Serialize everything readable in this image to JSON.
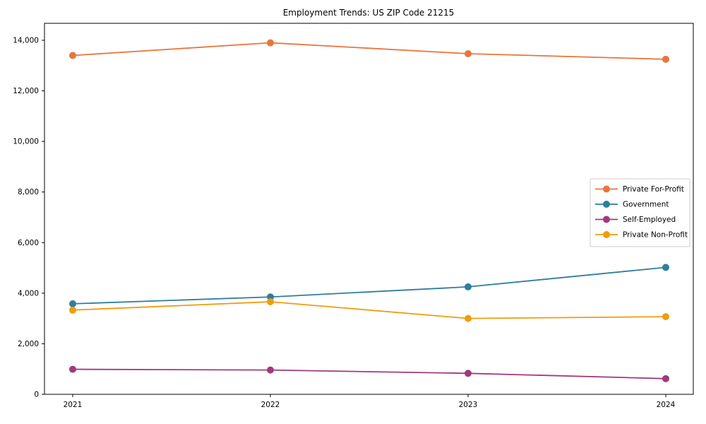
{
  "chart_data": {
    "type": "line",
    "title": "Employment Trends: US ZIP Code 21215",
    "xlabel": "",
    "ylabel": "",
    "x": [
      2021,
      2022,
      2023,
      2024
    ],
    "x_tick_labels": [
      "2021",
      "2022",
      "2023",
      "2024"
    ],
    "y_tick_labels": [
      "0",
      "2,000",
      "4,000",
      "6,000",
      "8,000",
      "10,000",
      "12,000",
      "14,000"
    ],
    "y_tick_step": 2000,
    "ylim": [
      0,
      14000
    ],
    "grid": false,
    "marker": "circle",
    "legend_position": "center-right",
    "background_color": "#ffffff",
    "axis_color": "#000000",
    "legend_border_color": "#cccccc",
    "series": [
      {
        "name": "Private For-Profit",
        "color": "#e8763c",
        "values": [
          13400,
          13900,
          13470,
          13250
        ]
      },
      {
        "name": "Government",
        "color": "#2e7e9d",
        "values": [
          3580,
          3850,
          4250,
          5020
        ]
      },
      {
        "name": "Self-Employed",
        "color": "#a03a7d",
        "values": [
          990,
          960,
          830,
          620
        ]
      },
      {
        "name": "Private Non-Profit",
        "color": "#f09c0c",
        "values": [
          3330,
          3660,
          3000,
          3070
        ]
      }
    ]
  }
}
